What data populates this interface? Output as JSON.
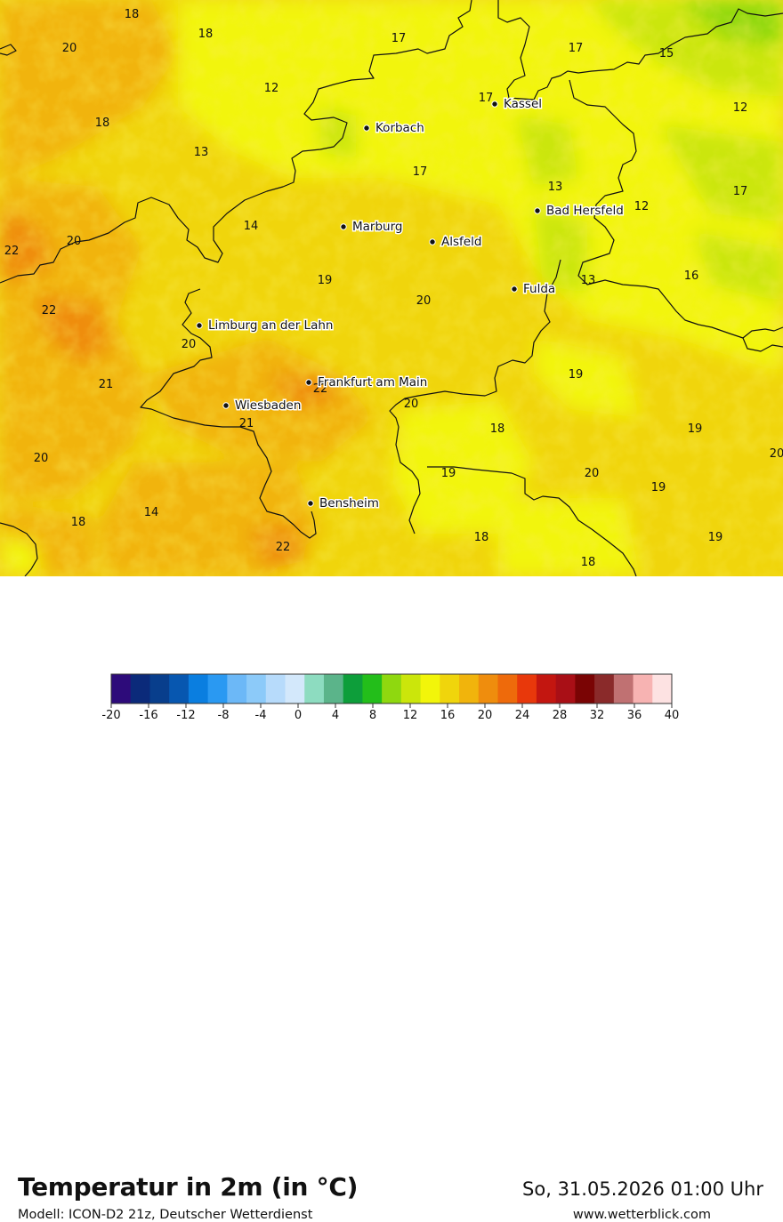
{
  "header": {
    "title": "Temperatur in 2m (in °C)",
    "model": "Modell: ICON-D2 21z, Deutscher Wetterdienst",
    "datetime": "So, 31.05.2026 01:00 Uhr",
    "website": "www.wetterblick.com"
  },
  "cities": [
    {
      "name": "Kassel"
    },
    {
      "name": "Korbach"
    },
    {
      "name": "Bad Hersfeld"
    },
    {
      "name": "Marburg"
    },
    {
      "name": "Alsfeld"
    },
    {
      "name": "Fulda"
    },
    {
      "name": "Limburg an der Lahn"
    },
    {
      "name": "Frankfurt am Main"
    },
    {
      "name": "Wiesbaden"
    },
    {
      "name": "Bensheim"
    }
  ],
  "value_labels": [
    "18",
    "18",
    "20",
    "17",
    "17",
    "15",
    "12",
    "17",
    "18",
    "12",
    "13",
    "17",
    "13",
    "12",
    "17",
    "14",
    "22",
    "20",
    "19",
    "20",
    "13",
    "16",
    "22",
    "20",
    "21",
    "22",
    "19",
    "20",
    "18",
    "19",
    "21",
    "20",
    "19",
    "19",
    "20",
    "20",
    "14",
    "18",
    "18",
    "22",
    "18",
    "19"
  ],
  "legend": {
    "ticks": [
      "-20",
      "-16",
      "-12",
      "-8",
      "-4",
      "0",
      "4",
      "8",
      "12",
      "16",
      "20",
      "24",
      "28",
      "32",
      "36",
      "40"
    ],
    "colors": [
      "#2d0b7a",
      "#0b2a7a",
      "#083e8c",
      "#0757b0",
      "#0a7ee0",
      "#2a99f2",
      "#6cb8f7",
      "#8ccaf9",
      "#b7dbfb",
      "#d3e8fb",
      "#8ddcc0",
      "#5bb48a",
      "#0d9e3a",
      "#23be1a",
      "#8fd80f",
      "#cbe60b",
      "#f2f50a",
      "#f0d50c",
      "#f1b40c",
      "#ef8d0d",
      "#ee6a0b",
      "#e8380b",
      "#c31610",
      "#a90f16",
      "#7a0404",
      "#8a2a2a",
      "#c07172",
      "#f7b3b2",
      "#fde2e2"
    ],
    "min": -20,
    "max": 40
  }
}
